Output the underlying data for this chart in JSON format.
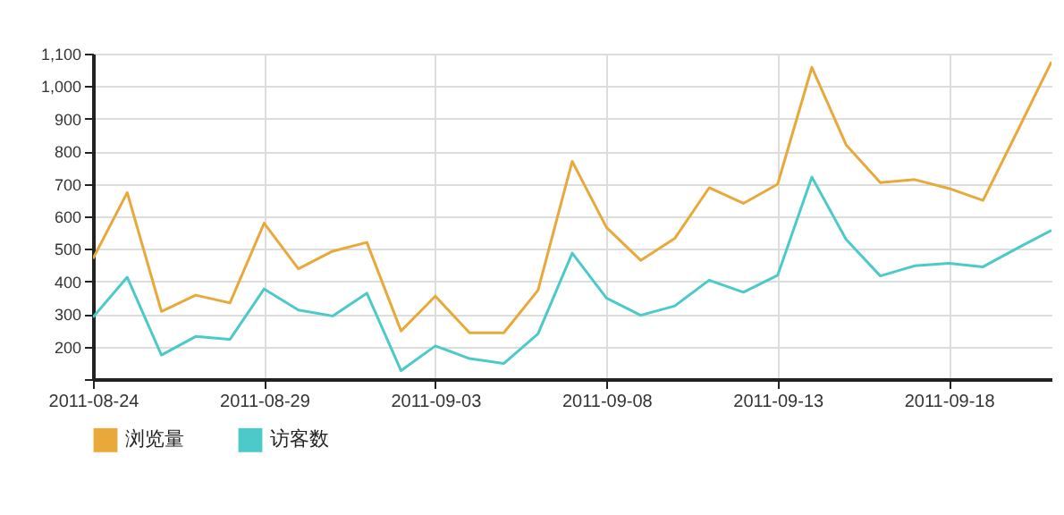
{
  "chart_data": {
    "type": "line",
    "x": [
      "2011-08-24",
      "2011-08-25",
      "2011-08-26",
      "2011-08-27",
      "2011-08-28",
      "2011-08-29",
      "2011-08-30",
      "2011-08-31",
      "2011-09-01",
      "2011-09-02",
      "2011-09-03",
      "2011-09-04",
      "2011-09-05",
      "2011-09-06",
      "2011-09-07",
      "2011-09-08",
      "2011-09-09",
      "2011-09-10",
      "2011-09-11",
      "2011-09-12",
      "2011-09-13",
      "2011-09-14",
      "2011-09-15",
      "2011-09-16",
      "2011-09-17",
      "2011-09-18",
      "2011-09-19",
      "2011-09-20",
      "2011-09-21"
    ],
    "series": [
      {
        "name": "浏览量",
        "color": "#e8a93a",
        "values": [
          470,
          673,
          308,
          358,
          334,
          579,
          439,
          493,
          520,
          248,
          355,
          242,
          242,
          373,
          769,
          566,
          465,
          533,
          688,
          640,
          699,
          1058,
          820,
          704,
          713,
          686,
          649,
          861,
          1075
        ]
      },
      {
        "name": "访客数",
        "color": "#4cc9c9",
        "values": [
          290,
          413,
          174,
          231,
          222,
          377,
          312,
          294,
          364,
          126,
          202,
          163,
          148,
          239,
          487,
          349,
          296,
          325,
          404,
          367,
          419,
          721,
          529,
          417,
          448,
          456,
          445,
          502,
          557
        ]
      }
    ],
    "xlim": [
      "2011-08-24",
      "2011-09-21"
    ],
    "xticks": [
      "2011-08-24",
      "2011-08-29",
      "2011-09-03",
      "2011-09-08",
      "2011-09-13",
      "2011-09-18"
    ],
    "ylim": [
      100,
      1100
    ],
    "yticks": [
      {
        "value": 100,
        "label": null
      },
      200,
      300,
      400,
      500,
      600,
      700,
      800,
      900,
      {
        "value": 1000,
        "label": "1,000"
      },
      {
        "value": 1100,
        "label": "1,100"
      }
    ],
    "grid": true,
    "legend": "bottom left",
    "line_style": "solid"
  }
}
